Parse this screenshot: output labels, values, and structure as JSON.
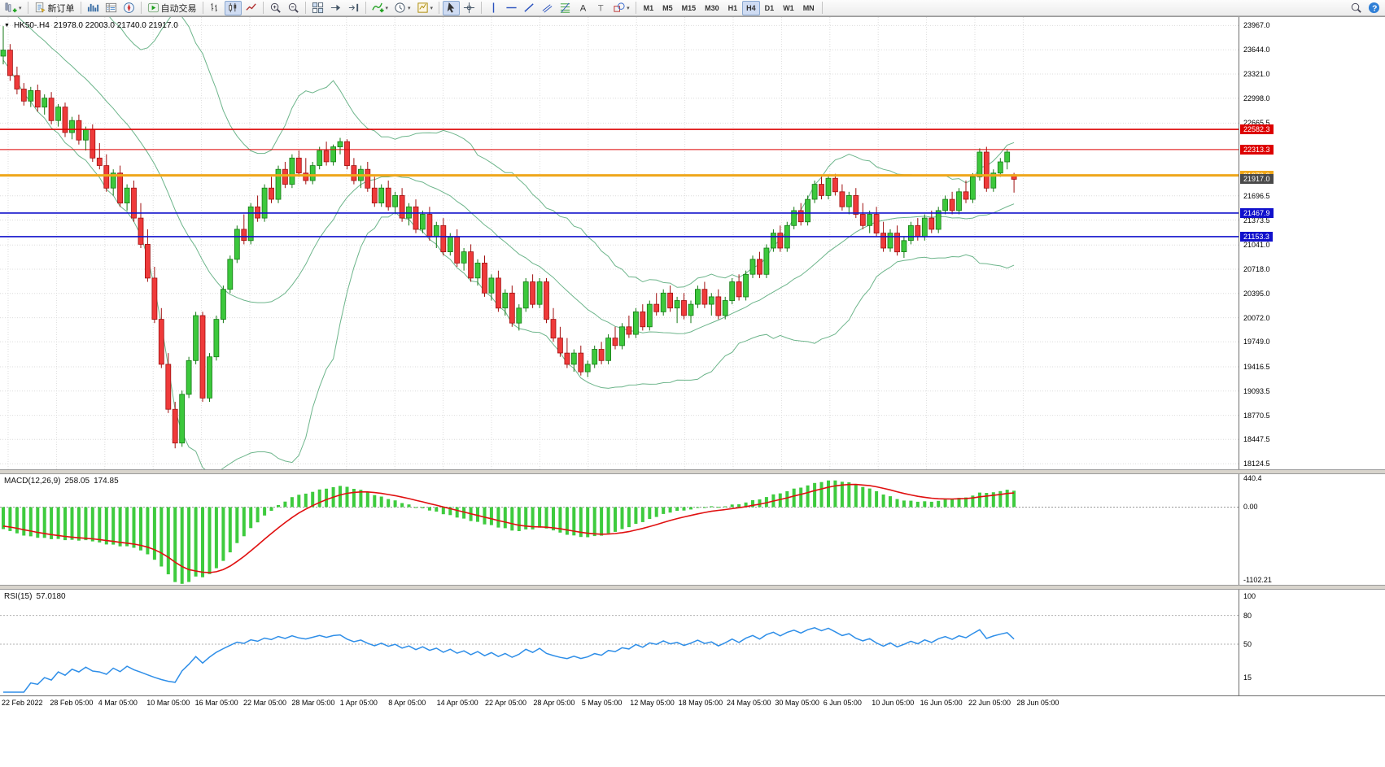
{
  "toolbar": {
    "groups": [
      {
        "items": [
          {
            "name": "new-chart-button",
            "icon": "chart-plus-icon",
            "dropdown": true
          }
        ]
      },
      {
        "items": [
          {
            "name": "new-order-button",
            "icon": "new-order-icon",
            "label": "新订单"
          }
        ]
      },
      {
        "items": [
          {
            "name": "market-watch-button",
            "icon": "market-watch-icon"
          },
          {
            "name": "data-window-button",
            "icon": "data-window-icon"
          },
          {
            "name": "navigator-button",
            "icon": "navigator-icon"
          }
        ]
      },
      {
        "items": [
          {
            "name": "autotrading-button",
            "icon": "autotrading-icon",
            "label": "自动交易"
          }
        ]
      },
      {
        "items": [
          {
            "name": "chart-bars-button",
            "icon": "bars-type-icon"
          },
          {
            "name": "chart-candles-button",
            "icon": "candles-type-icon",
            "active": true
          },
          {
            "name": "chart-line-button",
            "icon": "line-type-icon"
          }
        ]
      },
      {
        "items": [
          {
            "name": "zoom-in-button",
            "icon": "zoom-in-icon"
          },
          {
            "name": "zoom-out-button",
            "icon": "zoom-out-icon"
          }
        ]
      },
      {
        "items": [
          {
            "name": "tile-windows-button",
            "icon": "tile-windows-icon"
          },
          {
            "name": "auto-scroll-button",
            "icon": "auto-scroll-icon"
          },
          {
            "name": "chart-shift-button",
            "icon": "chart-shift-icon"
          }
        ]
      },
      {
        "items": [
          {
            "name": "indicators-button",
            "icon": "indicators-icon",
            "dropdown": true
          },
          {
            "name": "periods-button",
            "icon": "periods-icon",
            "dropdown": true
          },
          {
            "name": "templates-button",
            "icon": "templates-icon",
            "dropdown": true
          }
        ]
      },
      {
        "items": [
          {
            "name": "cursor-button",
            "icon": "cursor-icon",
            "active": true
          },
          {
            "name": "crosshair-button",
            "icon": "crosshair-icon"
          }
        ]
      },
      {
        "items": [
          {
            "name": "vertical-line-button",
            "icon": "vline-icon"
          },
          {
            "name": "horizontal-line-button",
            "icon": "hline-icon"
          },
          {
            "name": "trendline-button",
            "icon": "trendline-icon"
          },
          {
            "name": "channel-button",
            "icon": "channel-icon"
          },
          {
            "name": "fibonacci-button",
            "icon": "fibonacci-icon"
          },
          {
            "name": "text-button",
            "icon": "text-icon"
          },
          {
            "name": "label-button",
            "icon": "label-icon"
          },
          {
            "name": "shapes-button",
            "icon": "shapes-icon",
            "dropdown": true
          }
        ]
      },
      {
        "timeframes": true,
        "items": [
          {
            "name": "tf-m1-button",
            "label": "M1"
          },
          {
            "name": "tf-m5-button",
            "label": "M5"
          },
          {
            "name": "tf-m15-button",
            "label": "M15"
          },
          {
            "name": "tf-m30-button",
            "label": "M30"
          },
          {
            "name": "tf-h1-button",
            "label": "H1"
          },
          {
            "name": "tf-h4-button",
            "label": "H4",
            "active": true
          },
          {
            "name": "tf-d1-button",
            "label": "D1"
          },
          {
            "name": "tf-w1-button",
            "label": "W1"
          },
          {
            "name": "tf-mn-button",
            "label": "MN"
          }
        ]
      },
      {
        "spacer": true,
        "items": []
      },
      {
        "items": [
          {
            "name": "search-button",
            "icon": "search-icon"
          },
          {
            "name": "help-button",
            "icon": "help-icon"
          }
        ]
      }
    ]
  },
  "chart": {
    "symbol_label": "HK50-.H4",
    "ohlc_text": "21978.0 22003.0 21740.0 21917.0",
    "price_ticks": [
      {
        "v": 23967.0,
        "label": "23967.0"
      },
      {
        "v": 23644.0,
        "label": "23644.0"
      },
      {
        "v": 23321.0,
        "label": "23321.0"
      },
      {
        "v": 22998.0,
        "label": "22998.0"
      },
      {
        "v": 22665.5,
        "label": "22665.5"
      },
      {
        "v": 21696.5,
        "label": "21696.5"
      },
      {
        "v": 21373.5,
        "label": "21373.5"
      },
      {
        "v": 21041.0,
        "label": "21041.0"
      },
      {
        "v": 20718.0,
        "label": "20718.0"
      },
      {
        "v": 20395.0,
        "label": "20395.0"
      },
      {
        "v": 20072.0,
        "label": "20072.0"
      },
      {
        "v": 19749.0,
        "label": "19749.0"
      },
      {
        "v": 19416.5,
        "label": "19416.5"
      },
      {
        "v": 19093.5,
        "label": "19093.5"
      },
      {
        "v": 18770.5,
        "label": "18770.5"
      },
      {
        "v": 18447.5,
        "label": "18447.5"
      },
      {
        "v": 18124.5,
        "label": "18124.5"
      }
    ],
    "levels": [
      {
        "value": 22582.3,
        "label": "22582.3",
        "color": "#dd0000",
        "line_width": 1.6
      },
      {
        "value": 22313.3,
        "label": "22313.3",
        "color": "#dd0000",
        "line_width": 1
      },
      {
        "value": 21970.0,
        "label": "21970.0",
        "color": "#efa71b",
        "line_width": 3
      },
      {
        "value": 21467.9,
        "label": "21467.9",
        "color": "#1111cc",
        "line_width": 1.6
      },
      {
        "value": 21153.3,
        "label": "21153.3",
        "color": "#1111cc",
        "line_width": 1.6
      }
    ],
    "current_price": {
      "value": 21917.0,
      "label": "21917.0",
      "badge_color": "#4a4a4a"
    }
  },
  "macd": {
    "name": "MACD(12,26,9)",
    "main_value": "258.05",
    "signal_value": "174.85",
    "params": {
      "fast": 12,
      "slow": 26,
      "signal": 9
    },
    "ticks": [
      {
        "v": 440.4,
        "label": "440.4"
      },
      {
        "v": 0,
        "label": "0.00"
      },
      {
        "v": -1102.21,
        "label": "-1102.21"
      }
    ]
  },
  "rsi": {
    "name": "RSI(15)",
    "value": "57.0180",
    "period": 15,
    "levels": [
      80,
      50
    ],
    "ticks": [
      {
        "v": 100,
        "label": "100"
      },
      {
        "v": 80,
        "label": "80"
      },
      {
        "v": 50,
        "label": "50"
      },
      {
        "v": 15,
        "label": "15"
      }
    ]
  },
  "chart_data": {
    "type": "candlestick",
    "symbol": "HK50-.H4",
    "timeframe": "H4",
    "last_ohlc": {
      "open": 21978.0,
      "high": 22003.0,
      "low": 21740.0,
      "close": 21917.0
    },
    "y_range": [
      18050,
      24080
    ],
    "x_labels": [
      "22 Feb 2022",
      "28 Feb 05:00",
      "4 Mar 05:00",
      "10 Mar 05:00",
      "16 Mar 05:00",
      "22 Mar 05:00",
      "28 Mar 05:00",
      "1 Apr 05:00",
      "8 Apr 05:00",
      "14 Apr 05:00",
      "22 Apr 05:00",
      "28 Apr 05:00",
      "5 May 05:00",
      "12 May 05:00",
      "18 May 05:00",
      "24 May 05:00",
      "30 May 05:00",
      "6 Jun 05:00",
      "10 Jun 05:00",
      "16 Jun 05:00",
      "22 Jun 05:00",
      "28 Jun 05:00"
    ],
    "overlays": {
      "bollinger": {
        "period": 20,
        "deviation": 2,
        "color": "#6db58b"
      }
    },
    "colors": {
      "up": "#3cc83c",
      "up_border": "#157a15",
      "down": "#ef3a3a",
      "down_border": "#a01010",
      "grid": "#dcdcdc",
      "macd_hist": "#3ecb3e",
      "macd_signal": "#e01010",
      "rsi": "#2e8ee8"
    },
    "candles": [
      [
        23560,
        23960,
        23450,
        23640
      ],
      [
        23640,
        23720,
        23230,
        23300
      ],
      [
        23300,
        23420,
        23050,
        23120
      ],
      [
        23120,
        23200,
        22900,
        22960
      ],
      [
        22960,
        23150,
        22880,
        23100
      ],
      [
        23100,
        23180,
        22820,
        22880
      ],
      [
        22880,
        23050,
        22780,
        23000
      ],
      [
        23000,
        23080,
        22650,
        22700
      ],
      [
        22700,
        22920,
        22620,
        22880
      ],
      [
        22880,
        22940,
        22480,
        22540
      ],
      [
        22540,
        22750,
        22450,
        22700
      ],
      [
        22700,
        22780,
        22380,
        22440
      ],
      [
        22440,
        22620,
        22300,
        22580
      ],
      [
        22580,
        22650,
        22150,
        22200
      ],
      [
        22200,
        22400,
        22050,
        22100
      ],
      [
        22100,
        22250,
        21750,
        21800
      ],
      [
        21800,
        22050,
        21700,
        22000
      ],
      [
        22000,
        22100,
        21550,
        21600
      ],
      [
        21600,
        21850,
        21500,
        21800
      ],
      [
        21800,
        21900,
        21350,
        21400
      ],
      [
        21400,
        21600,
        21000,
        21050
      ],
      [
        21050,
        21250,
        20550,
        20600
      ],
      [
        20600,
        20750,
        20000,
        20050
      ],
      [
        20050,
        20200,
        19400,
        19450
      ],
      [
        19450,
        19600,
        18800,
        18850
      ],
      [
        18850,
        18950,
        18330,
        18400
      ],
      [
        18400,
        19100,
        18350,
        19050
      ],
      [
        19050,
        19550,
        19000,
        19500
      ],
      [
        19500,
        20150,
        19450,
        20100
      ],
      [
        20100,
        20150,
        18950,
        19000
      ],
      [
        19000,
        19600,
        18950,
        19550
      ],
      [
        19550,
        20100,
        19500,
        20050
      ],
      [
        20050,
        20500,
        20000,
        20450
      ],
      [
        20450,
        20900,
        20400,
        20850
      ],
      [
        20850,
        21300,
        20800,
        21250
      ],
      [
        21250,
        21450,
        21050,
        21100
      ],
      [
        21100,
        21600,
        21050,
        21550
      ],
      [
        21550,
        21700,
        21350,
        21400
      ],
      [
        21400,
        21850,
        21350,
        21800
      ],
      [
        21800,
        21950,
        21600,
        21650
      ],
      [
        21650,
        22100,
        21600,
        22050
      ],
      [
        22050,
        22150,
        21800,
        21850
      ],
      [
        21850,
        22250,
        21800,
        22200
      ],
      [
        22200,
        22300,
        21950,
        22000
      ],
      [
        22000,
        22200,
        21850,
        21900
      ],
      [
        21900,
        22150,
        21850,
        22100
      ],
      [
        22100,
        22350,
        22050,
        22300
      ],
      [
        22300,
        22420,
        22100,
        22150
      ],
      [
        22150,
        22380,
        22100,
        22350
      ],
      [
        22350,
        22470,
        22250,
        22420
      ],
      [
        22420,
        22450,
        22050,
        22100
      ],
      [
        22100,
        22200,
        21850,
        21900
      ],
      [
        21900,
        22100,
        21800,
        22050
      ],
      [
        22050,
        22150,
        21750,
        21800
      ],
      [
        21800,
        21950,
        21550,
        21600
      ],
      [
        21600,
        21850,
        21550,
        21800
      ],
      [
        21800,
        21900,
        21500,
        21550
      ],
      [
        21550,
        21750,
        21450,
        21700
      ],
      [
        21700,
        21800,
        21350,
        21400
      ],
      [
        21400,
        21600,
        21300,
        21550
      ],
      [
        21550,
        21650,
        21200,
        21250
      ],
      [
        21250,
        21500,
        21200,
        21450
      ],
      [
        21450,
        21550,
        21100,
        21150
      ],
      [
        21150,
        21350,
        21000,
        21300
      ],
      [
        21300,
        21400,
        20900,
        20950
      ],
      [
        20950,
        21200,
        20900,
        21150
      ],
      [
        21150,
        21250,
        20750,
        20800
      ],
      [
        20800,
        21000,
        20700,
        20950
      ],
      [
        20950,
        21050,
        20550,
        20600
      ],
      [
        20600,
        20850,
        20500,
        20800
      ],
      [
        20800,
        20900,
        20350,
        20400
      ],
      [
        20400,
        20650,
        20300,
        20600
      ],
      [
        20600,
        20700,
        20150,
        20200
      ],
      [
        20200,
        20450,
        20100,
        20400
      ],
      [
        20400,
        20500,
        19950,
        20000
      ],
      [
        20000,
        20250,
        19900,
        20200
      ],
      [
        20200,
        20600,
        20150,
        20550
      ],
      [
        20550,
        20650,
        20200,
        20250
      ],
      [
        20250,
        20600,
        20200,
        20550
      ],
      [
        20550,
        20600,
        20000,
        20050
      ],
      [
        20050,
        20200,
        19750,
        19800
      ],
      [
        19800,
        19950,
        19550,
        19600
      ],
      [
        19600,
        19800,
        19400,
        19450
      ],
      [
        19450,
        19650,
        19350,
        19600
      ],
      [
        19600,
        19700,
        19300,
        19350
      ],
      [
        19350,
        19500,
        19280,
        19450
      ],
      [
        19450,
        19700,
        19400,
        19650
      ],
      [
        19650,
        19750,
        19450,
        19500
      ],
      [
        19500,
        19850,
        19450,
        19800
      ],
      [
        19800,
        19950,
        19650,
        19700
      ],
      [
        19700,
        20000,
        19650,
        19950
      ],
      [
        19950,
        20100,
        19800,
        19850
      ],
      [
        19850,
        20200,
        19800,
        20150
      ],
      [
        20150,
        20250,
        19900,
        19950
      ],
      [
        19950,
        20300,
        19900,
        20250
      ],
      [
        20250,
        20400,
        20100,
        20150
      ],
      [
        20150,
        20450,
        20100,
        20400
      ],
      [
        20400,
        20500,
        20150,
        20200
      ],
      [
        20200,
        20350,
        20000,
        20300
      ],
      [
        20300,
        20400,
        20050,
        20100
      ],
      [
        20100,
        20300,
        20000,
        20250
      ],
      [
        20250,
        20500,
        20200,
        20450
      ],
      [
        20450,
        20550,
        20200,
        20250
      ],
      [
        20250,
        20400,
        20100,
        20350
      ],
      [
        20350,
        20450,
        20050,
        20100
      ],
      [
        20100,
        20350,
        20050,
        20300
      ],
      [
        20300,
        20600,
        20250,
        20550
      ],
      [
        20550,
        20650,
        20300,
        20350
      ],
      [
        20350,
        20700,
        20300,
        20650
      ],
      [
        20650,
        20900,
        20600,
        20850
      ],
      [
        20850,
        20950,
        20600,
        20650
      ],
      [
        20650,
        21050,
        20600,
        21000
      ],
      [
        21000,
        21250,
        20950,
        21200
      ],
      [
        21200,
        21300,
        20950,
        21000
      ],
      [
        21000,
        21350,
        20950,
        21300
      ],
      [
        21300,
        21550,
        21250,
        21500
      ],
      [
        21500,
        21600,
        21300,
        21350
      ],
      [
        21350,
        21700,
        21300,
        21650
      ],
      [
        21650,
        21900,
        21600,
        21850
      ],
      [
        21850,
        21950,
        21650,
        21700
      ],
      [
        21700,
        21980,
        21650,
        21930
      ],
      [
        21930,
        21990,
        21700,
        21750
      ],
      [
        21750,
        21850,
        21500,
        21550
      ],
      [
        21550,
        21750,
        21450,
        21700
      ],
      [
        21700,
        21800,
        21400,
        21450
      ],
      [
        21450,
        21600,
        21250,
        21300
      ],
      [
        21300,
        21500,
        21200,
        21450
      ],
      [
        21450,
        21550,
        21150,
        21200
      ],
      [
        21200,
        21350,
        20950,
        21000
      ],
      [
        21000,
        21250,
        20950,
        21200
      ],
      [
        21200,
        21300,
        20900,
        20950
      ],
      [
        20950,
        21150,
        20870,
        21100
      ],
      [
        21100,
        21350,
        21050,
        21300
      ],
      [
        21300,
        21400,
        21100,
        21150
      ],
      [
        21150,
        21450,
        21100,
        21400
      ],
      [
        21400,
        21500,
        21200,
        21250
      ],
      [
        21250,
        21550,
        21200,
        21500
      ],
      [
        21500,
        21700,
        21450,
        21650
      ],
      [
        21650,
        21750,
        21450,
        21500
      ],
      [
        21500,
        21800,
        21450,
        21750
      ],
      [
        21750,
        21900,
        21600,
        21650
      ],
      [
        21650,
        22000,
        21600,
        21950
      ],
      [
        21950,
        22330,
        21900,
        22280
      ],
      [
        22280,
        22350,
        21750,
        21800
      ],
      [
        21800,
        22050,
        21750,
        22000
      ],
      [
        22000,
        22200,
        21950,
        22150
      ],
      [
        22150,
        22320,
        22050,
        22280
      ],
      [
        21978,
        22003,
        21740,
        21917
      ]
    ]
  }
}
